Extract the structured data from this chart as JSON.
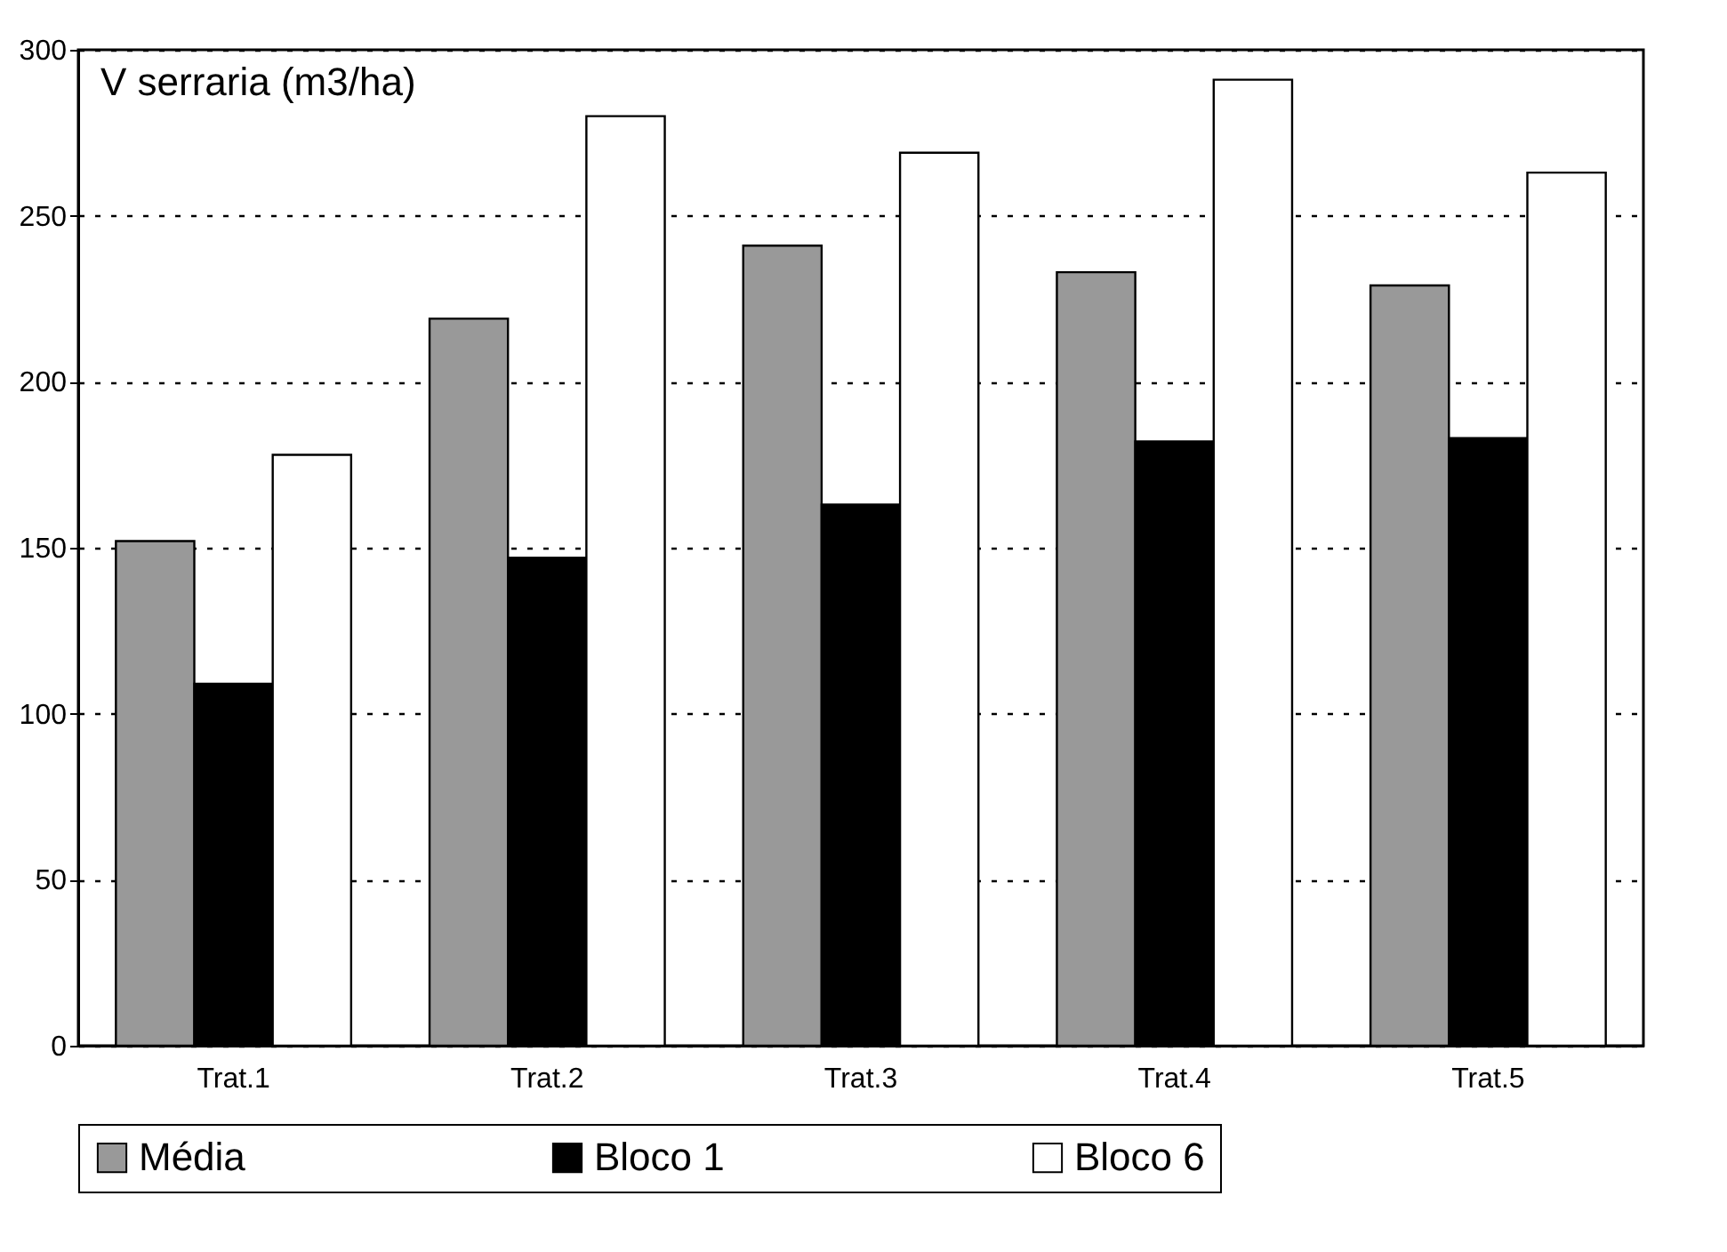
{
  "chart_data": {
    "type": "bar",
    "ylabel": "V serraria (m3/ha)",
    "categories": [
      "Trat.1",
      "Trat.2",
      "Trat.3",
      "Trat.4",
      "Trat.5"
    ],
    "series": [
      {
        "name": "Média",
        "color": "#999999",
        "values": [
          152,
          219,
          241,
          233,
          229
        ]
      },
      {
        "name": "Bloco 1",
        "color": "#000000",
        "values": [
          109,
          147,
          163,
          182,
          183
        ]
      },
      {
        "name": "Bloco 6",
        "color": "#ffffff",
        "values": [
          178,
          280,
          269,
          291,
          263
        ]
      }
    ],
    "ylim": [
      0,
      300
    ],
    "yticks": [
      0,
      50,
      100,
      150,
      200,
      250,
      300
    ],
    "grid": "y",
    "legend": "bottom"
  }
}
